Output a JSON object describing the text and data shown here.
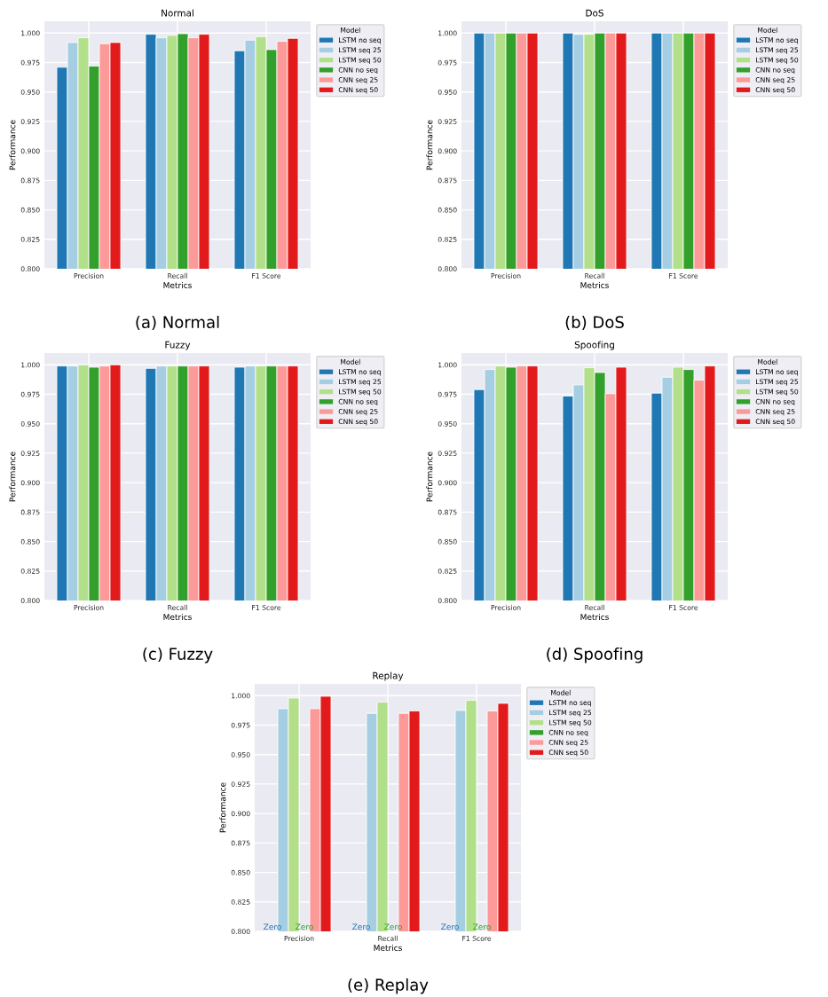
{
  "chart_data": [
    {
      "type": "bar",
      "title": "Normal",
      "xlabel": "Metrics",
      "ylabel": "Performance",
      "legend_title": "Model",
      "categories": [
        "Precision",
        "Recall",
        "F1 Score"
      ],
      "ylim": [
        0.8,
        1.01
      ],
      "yticks": [
        {
          "value": 0.8,
          "label": "0.800"
        },
        {
          "value": 0.825,
          "label": "0.825"
        },
        {
          "value": 0.85,
          "label": "0.850"
        },
        {
          "value": 0.875,
          "label": "0.875"
        },
        {
          "value": 0.9,
          "label": "0.900"
        },
        {
          "value": 0.925,
          "label": "0.925"
        },
        {
          "value": 0.95,
          "label": "0.950"
        },
        {
          "value": 0.975,
          "label": "0.975"
        },
        {
          "value": 1.0,
          "label": "1.000"
        }
      ],
      "grid": true,
      "legend": "right",
      "annotations": [
        "(a) Normal"
      ],
      "series": [
        {
          "name": "LSTM no seq",
          "color": "#1f78b4",
          "values": [
            0.971,
            0.999,
            0.985
          ]
        },
        {
          "name": "LSTM seq 25",
          "color": "#a6cee3",
          "values": [
            0.992,
            0.996,
            0.994
          ]
        },
        {
          "name": "LSTM seq 50",
          "color": "#b2df8a",
          "values": [
            0.996,
            0.998,
            0.997
          ]
        },
        {
          "name": "CNN no seq",
          "color": "#33a02c",
          "values": [
            0.972,
            0.9995,
            0.986
          ]
        },
        {
          "name": "CNN seq 25",
          "color": "#fb9a99",
          "values": [
            0.991,
            0.996,
            0.993
          ]
        },
        {
          "name": "CNN seq 50",
          "color": "#e31a1c",
          "values": [
            0.992,
            0.999,
            0.9955
          ]
        }
      ]
    },
    {
      "type": "bar",
      "title": "DoS",
      "xlabel": "Metrics",
      "ylabel": "Performance",
      "legend_title": "Model",
      "categories": [
        "Precision",
        "Recall",
        "F1 Score"
      ],
      "ylim": [
        0.8,
        1.01
      ],
      "yticks": [
        {
          "value": 0.8,
          "label": "0.800"
        },
        {
          "value": 0.825,
          "label": "0.825"
        },
        {
          "value": 0.85,
          "label": "0.850"
        },
        {
          "value": 0.875,
          "label": "0.875"
        },
        {
          "value": 0.9,
          "label": "0.900"
        },
        {
          "value": 0.925,
          "label": "0.925"
        },
        {
          "value": 0.95,
          "label": "0.950"
        },
        {
          "value": 0.975,
          "label": "0.975"
        },
        {
          "value": 1.0,
          "label": "1.000"
        }
      ],
      "grid": true,
      "legend": "right",
      "annotations": [
        "(b) DoS"
      ],
      "series": [
        {
          "name": "LSTM no seq",
          "color": "#1f78b4",
          "values": [
            1.0,
            1.0,
            1.0
          ]
        },
        {
          "name": "LSTM seq 25",
          "color": "#a6cee3",
          "values": [
            1.0,
            0.999,
            1.0
          ]
        },
        {
          "name": "LSTM seq 50",
          "color": "#b2df8a",
          "values": [
            1.0,
            0.999,
            1.0
          ]
        },
        {
          "name": "CNN no seq",
          "color": "#33a02c",
          "values": [
            1.0,
            1.0,
            1.0
          ]
        },
        {
          "name": "CNN seq 25",
          "color": "#fb9a99",
          "values": [
            1.0,
            1.0,
            1.0
          ]
        },
        {
          "name": "CNN seq 50",
          "color": "#e31a1c",
          "values": [
            1.0,
            1.0,
            1.0
          ]
        }
      ]
    },
    {
      "type": "bar",
      "title": "Fuzzy",
      "xlabel": "Metrics",
      "ylabel": "Performance",
      "legend_title": "Model",
      "categories": [
        "Precision",
        "Recall",
        "F1 Score"
      ],
      "ylim": [
        0.8,
        1.01
      ],
      "yticks": [
        {
          "value": 0.8,
          "label": "0.800"
        },
        {
          "value": 0.825,
          "label": "0.825"
        },
        {
          "value": 0.85,
          "label": "0.850"
        },
        {
          "value": 0.875,
          "label": "0.875"
        },
        {
          "value": 0.9,
          "label": "0.900"
        },
        {
          "value": 0.925,
          "label": "0.925"
        },
        {
          "value": 0.95,
          "label": "0.950"
        },
        {
          "value": 0.975,
          "label": "0.975"
        },
        {
          "value": 1.0,
          "label": "1.000"
        }
      ],
      "grid": true,
      "legend": "right",
      "annotations": [
        "(c) Fuzzy"
      ],
      "series": [
        {
          "name": "LSTM no seq",
          "color": "#1f78b4",
          "values": [
            0.999,
            0.997,
            0.998
          ]
        },
        {
          "name": "LSTM seq 25",
          "color": "#a6cee3",
          "values": [
            0.999,
            0.999,
            0.999
          ]
        },
        {
          "name": "LSTM seq 50",
          "color": "#b2df8a",
          "values": [
            1.0,
            0.999,
            0.999
          ]
        },
        {
          "name": "CNN no seq",
          "color": "#33a02c",
          "values": [
            0.998,
            0.999,
            0.999
          ]
        },
        {
          "name": "CNN seq 25",
          "color": "#fb9a99",
          "values": [
            0.999,
            0.999,
            0.999
          ]
        },
        {
          "name": "CNN seq 50",
          "color": "#e31a1c",
          "values": [
            1.0,
            0.999,
            0.999
          ]
        }
      ]
    },
    {
      "type": "bar",
      "title": "Spoofing",
      "xlabel": "Metrics",
      "ylabel": "Performance",
      "legend_title": "Model",
      "categories": [
        "Precision",
        "Recall",
        "F1 Score"
      ],
      "ylim": [
        0.8,
        1.01
      ],
      "yticks": [
        {
          "value": 0.8,
          "label": "0.800"
        },
        {
          "value": 0.825,
          "label": "0.825"
        },
        {
          "value": 0.85,
          "label": "0.850"
        },
        {
          "value": 0.875,
          "label": "0.875"
        },
        {
          "value": 0.9,
          "label": "0.900"
        },
        {
          "value": 0.925,
          "label": "0.925"
        },
        {
          "value": 0.95,
          "label": "0.950"
        },
        {
          "value": 0.975,
          "label": "0.975"
        },
        {
          "value": 1.0,
          "label": "1.000"
        }
      ],
      "grid": true,
      "legend": "right",
      "annotations": [
        "(d) Spoofing"
      ],
      "series": [
        {
          "name": "LSTM no seq",
          "color": "#1f78b4",
          "values": [
            0.979,
            0.9735,
            0.976
          ]
        },
        {
          "name": "LSTM seq 25",
          "color": "#a6cee3",
          "values": [
            0.996,
            0.983,
            0.9895
          ]
        },
        {
          "name": "LSTM seq 50",
          "color": "#b2df8a",
          "values": [
            0.999,
            0.9975,
            0.998
          ]
        },
        {
          "name": "CNN no seq",
          "color": "#33a02c",
          "values": [
            0.998,
            0.9935,
            0.996
          ]
        },
        {
          "name": "CNN seq 25",
          "color": "#fb9a99",
          "values": [
            0.999,
            0.9755,
            0.987
          ]
        },
        {
          "name": "CNN seq 50",
          "color": "#e31a1c",
          "values": [
            0.999,
            0.998,
            0.999
          ]
        }
      ]
    },
    {
      "type": "bar",
      "title": "Replay",
      "xlabel": "Metrics",
      "ylabel": "Performance",
      "legend_title": "Model",
      "categories": [
        "Precision",
        "Recall",
        "F1 Score"
      ],
      "ylim": [
        0.8,
        1.01
      ],
      "yticks": [
        {
          "value": 0.8,
          "label": "0.800"
        },
        {
          "value": 0.825,
          "label": "0.825"
        },
        {
          "value": 0.85,
          "label": "0.850"
        },
        {
          "value": 0.875,
          "label": "0.875"
        },
        {
          "value": 0.9,
          "label": "0.900"
        },
        {
          "value": 0.925,
          "label": "0.925"
        },
        {
          "value": 0.95,
          "label": "0.950"
        },
        {
          "value": 0.975,
          "label": "0.975"
        },
        {
          "value": 1.0,
          "label": "1.000"
        }
      ],
      "grid": true,
      "legend": "right",
      "annotations": [
        "(e) Replay"
      ],
      "series": [
        {
          "name": "LSTM no seq",
          "color": "#1f78b4",
          "values": [
            null,
            null,
            null
          ],
          "value_labels": [
            "Zero",
            "Zero",
            "Zero"
          ]
        },
        {
          "name": "LSTM seq 25",
          "color": "#a6cee3",
          "values": [
            0.989,
            0.985,
            0.9875
          ]
        },
        {
          "name": "LSTM seq 50",
          "color": "#b2df8a",
          "values": [
            0.998,
            0.9945,
            0.996
          ]
        },
        {
          "name": "CNN no seq",
          "color": "#33a02c",
          "values": [
            null,
            null,
            null
          ],
          "value_labels": [
            "Zero",
            "Zero",
            "Zero"
          ]
        },
        {
          "name": "CNN seq 25",
          "color": "#fb9a99",
          "values": [
            0.989,
            0.985,
            0.987
          ]
        },
        {
          "name": "CNN seq 50",
          "color": "#e31a1c",
          "values": [
            0.9995,
            0.987,
            0.9935
          ]
        }
      ]
    }
  ]
}
